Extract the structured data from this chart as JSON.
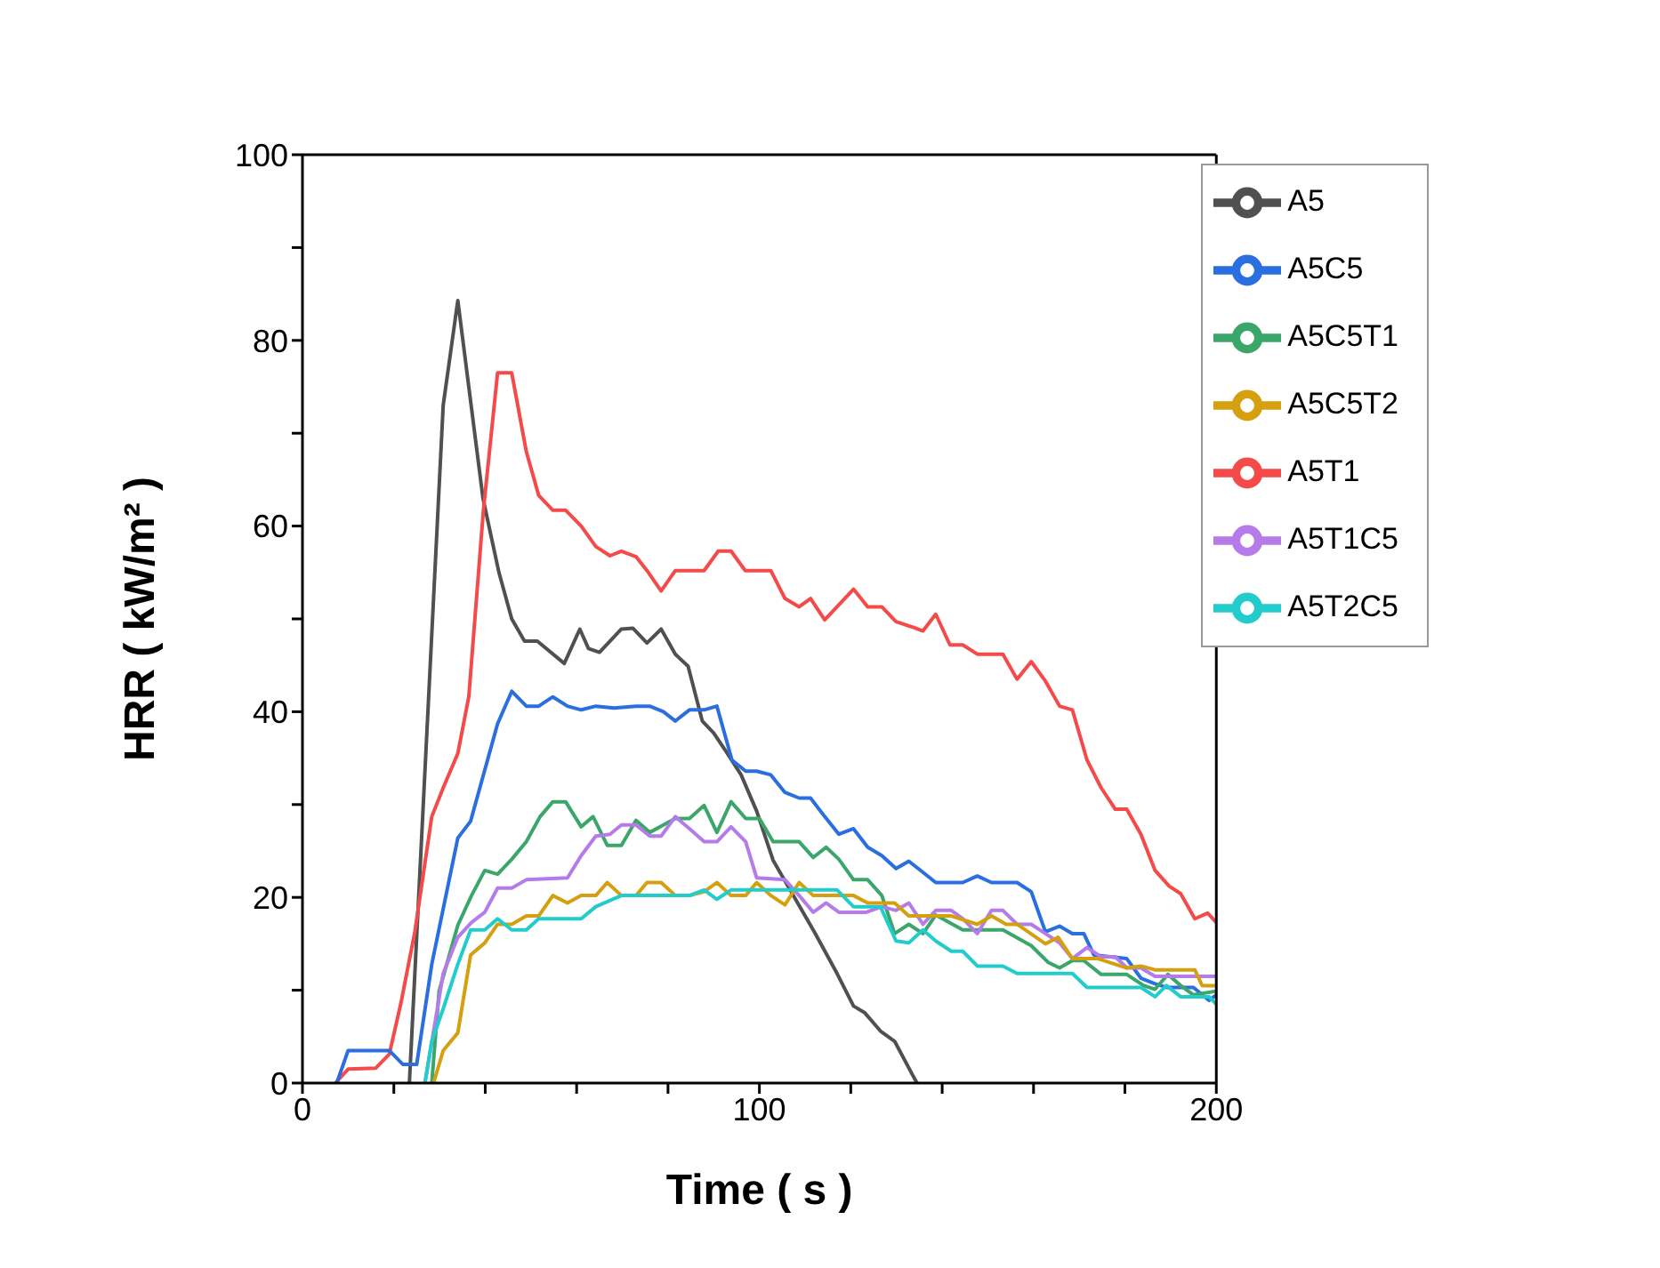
{
  "chart_data": {
    "type": "line",
    "xlabel": "Time ( s )",
    "ylabel": "HRR ( kW/m² )",
    "xlim": [
      0,
      200
    ],
    "xticks": [
      0,
      {
        "value": 20,
        "label": null
      },
      {
        "value": 40,
        "label": null
      },
      {
        "value": 60,
        "label": null
      },
      {
        "value": 80,
        "label": null
      },
      100,
      {
        "value": 120,
        "label": null
      },
      {
        "value": 140,
        "label": null
      },
      {
        "value": 160,
        "label": null
      },
      {
        "value": 180,
        "label": null
      },
      200
    ],
    "ylim": [
      0,
      100
    ],
    "yticks": [
      0,
      {
        "value": 10,
        "label": null
      },
      20,
      {
        "value": 30,
        "label": null
      },
      40,
      {
        "value": 50,
        "label": null
      },
      60,
      {
        "value": 70,
        "label": null
      },
      80,
      {
        "value": 90,
        "label": null
      },
      100
    ],
    "grid": false,
    "legend": "top right",
    "marker": "none",
    "line_style": "solid",
    "series": [
      {
        "name": "A5",
        "color": "#505050",
        "x": [
          23.4,
          30.8,
          34,
          39.5,
          43,
          45.8,
          48.6,
          51.4,
          57.3,
          60.7,
          62.6,
          65,
          69.8,
          72.3,
          75.4,
          78.5,
          81.6,
          84.4,
          87.5,
          90,
          93,
          96,
          99.4,
          103,
          106.5,
          112,
          117,
          120.6,
          123,
          126.5,
          129.6,
          133.6,
          134.5
        ],
        "values": [
          0,
          73,
          84.3,
          63,
          55,
          50,
          47.6,
          47.6,
          45.2,
          48.9,
          46.8,
          46.4,
          48.9,
          49,
          47.4,
          48.9,
          46.2,
          44.9,
          39,
          37.7,
          35.5,
          33.2,
          29.3,
          24,
          21,
          16.3,
          11.8,
          8.3,
          7.6,
          5.6,
          4.5,
          0.8,
          0
        ]
      },
      {
        "name": "A5T1",
        "color": "#f44a4a",
        "x": [
          7.2,
          10,
          16,
          19,
          21.5,
          24.6,
          28.3,
          30.8,
          34,
          36.4,
          39.6,
          42.7,
          45.8,
          49,
          51.7,
          54.8,
          57.6,
          61,
          64.2,
          67.3,
          69.8,
          73,
          75.4,
          78.5,
          81.6,
          87.9,
          91,
          93.8,
          96.9,
          102.5,
          105.6,
          108.7,
          111.2,
          114.3,
          120.6,
          123.7,
          126.8,
          129.9,
          133.6,
          135.8,
          138.6,
          141.7,
          144.5,
          147.7,
          153.3,
          156.4,
          159.5,
          162.6,
          165.7,
          168.5,
          171.7,
          174.8,
          177.9,
          180.4,
          183.5,
          186.6,
          189.7,
          192.2,
          195.3,
          198.1,
          200
        ],
        "values": [
          0,
          1.5,
          1.6,
          3.1,
          8.5,
          16.3,
          28.7,
          31.8,
          35.5,
          41.6,
          61.7,
          76.5,
          76.5,
          68,
          63.3,
          61.7,
          61.7,
          60,
          57.8,
          56.8,
          57.3,
          56.7,
          55.2,
          53,
          55.2,
          55.2,
          57.3,
          57.3,
          55.2,
          55.2,
          52.2,
          51.3,
          52.2,
          49.9,
          53.2,
          51.3,
          51.3,
          49.7,
          49.1,
          48.7,
          50.5,
          47.2,
          47.2,
          46.2,
          46.2,
          43.5,
          45.4,
          43.3,
          40.6,
          40.2,
          34.8,
          31.8,
          29.5,
          29.5,
          26.8,
          22.9,
          21.2,
          20.4,
          17.7,
          18.3,
          17.3
        ]
      },
      {
        "name": "A5C5",
        "color": "#2a6ee0",
        "x": [
          7.5,
          10,
          19,
          22,
          25,
          28.3,
          34,
          36.8,
          42.7,
          45.8,
          49,
          51.7,
          54.8,
          58,
          61,
          64.2,
          68.2,
          73,
          76,
          79,
          81.6,
          84.7,
          87.9,
          90.7,
          94,
          97,
          99.4,
          102.5,
          105.6,
          108.7,
          111.2,
          114.3,
          117.4,
          120.6,
          123.7,
          126.8,
          129.9,
          132.7,
          135.8,
          138.6,
          144.5,
          147.7,
          150.8,
          156.4,
          159.5,
          162.6,
          165.7,
          168.5,
          171,
          173.2,
          180.4,
          183.5,
          186.6,
          189.1,
          195,
          198.4,
          200
        ],
        "values": [
          0,
          3.5,
          3.5,
          2,
          2,
          12.8,
          26.4,
          28.2,
          38.7,
          42.2,
          40.6,
          40.6,
          41.6,
          40.6,
          40.2,
          40.6,
          40.4,
          40.6,
          40.6,
          40,
          39,
          40.2,
          40.2,
          40.6,
          34.8,
          33.6,
          33.6,
          33.2,
          31.3,
          30.7,
          30.7,
          28.7,
          26.8,
          27.4,
          25.4,
          24.5,
          23.1,
          23.9,
          22.7,
          21.6,
          21.6,
          22.3,
          21.6,
          21.6,
          20.6,
          16.3,
          16.9,
          16.1,
          16.1,
          13.8,
          13.4,
          11.3,
          10.7,
          10.3,
          10.3,
          8.9,
          9.5
        ]
      },
      {
        "name": "A5C5T1",
        "color": "#3aa66a",
        "x": [
          28.3,
          29.9,
          34,
          37,
          39.9,
          42.7,
          45.8,
          49,
          52,
          54.8,
          57.6,
          61,
          63.6,
          66.7,
          69.8,
          73,
          76,
          79,
          81.6,
          84.7,
          87.9,
          90.7,
          93.8,
          97,
          100,
          103,
          108.7,
          111.8,
          114.6,
          117.4,
          120.6,
          123.7,
          126.8,
          129.6,
          132.7,
          135.8,
          138.6,
          144.5,
          153.3,
          159.5,
          163.2,
          165.7,
          168.5,
          171,
          174.8,
          180.4,
          184.1,
          186.6,
          189.4,
          192.2,
          195,
          200
        ],
        "values": [
          0,
          9.9,
          17,
          20.2,
          22.9,
          22.5,
          24.1,
          26,
          28.7,
          30.3,
          30.3,
          27.6,
          28.7,
          25.6,
          25.6,
          28.3,
          27,
          27.8,
          28.5,
          28.5,
          29.9,
          27,
          30.3,
          28.5,
          28.5,
          26,
          26,
          24.3,
          25.4,
          24.1,
          21.9,
          21.9,
          20.2,
          16.1,
          17.1,
          16.1,
          18.1,
          16.5,
          16.5,
          14.8,
          13,
          12.4,
          13.2,
          13.2,
          11.7,
          11.7,
          10.5,
          10.1,
          11.7,
          10.5,
          9.5,
          9.9
        ]
      },
      {
        "name": "A5T1C5",
        "color": "#b57be8",
        "x": [
          26.8,
          30.8,
          34,
          37,
          39.9,
          42.7,
          45.8,
          49,
          58,
          61,
          64.2,
          67.3,
          69.8,
          73,
          76,
          78.5,
          81.6,
          84.7,
          87.9,
          90.7,
          93.8,
          97,
          99.4,
          105.6,
          108.7,
          111.8,
          114.6,
          117.4,
          123.4,
          126.8,
          129.9,
          132.7,
          135.8,
          138.6,
          142,
          144.5,
          147.7,
          150.8,
          153.3,
          156.4,
          159.5,
          162.6,
          165.7,
          168.5,
          171.7,
          174.8,
          177.9,
          180.4,
          183.5,
          186.6,
          200
        ],
        "values": [
          0,
          11.8,
          15.7,
          17.3,
          18.4,
          21,
          21,
          21.9,
          22.1,
          24.5,
          26.6,
          26.8,
          27.8,
          27.8,
          26.6,
          26.6,
          28.7,
          27.4,
          26,
          26,
          27.6,
          26,
          22.1,
          21.9,
          20.2,
          18.4,
          19.4,
          18.4,
          18.4,
          19,
          18.6,
          19.4,
          17.1,
          18.6,
          18.6,
          17.7,
          16.1,
          18.6,
          18.6,
          17.1,
          17.1,
          16.1,
          15.1,
          13.4,
          14.6,
          13.6,
          13.6,
          12.4,
          12.4,
          11.5,
          11.5
        ]
      },
      {
        "name": "A5C5T2",
        "color": "#d4a010",
        "x": [
          28.7,
          30.8,
          34,
          36.8,
          39.9,
          42.7,
          45.8,
          49,
          51.7,
          54.8,
          58,
          61,
          64.2,
          66.7,
          69.8,
          73,
          75.4,
          78.5,
          81.6,
          84.7,
          87.9,
          90.7,
          93.8,
          97,
          99.4,
          102.5,
          105.6,
          108.7,
          111.8,
          120.6,
          123.7,
          129.6,
          132.7,
          142,
          147.7,
          150.8,
          154,
          156.4,
          162.6,
          165.4,
          168.5,
          174.1,
          180.4,
          183.5,
          186.6,
          195.3,
          196.9,
          200
        ],
        "values": [
          0,
          3.5,
          5.4,
          13.8,
          15.1,
          17.1,
          17.1,
          18,
          18,
          20.2,
          19.4,
          20.2,
          20.2,
          21.6,
          20.2,
          20.2,
          21.6,
          21.6,
          20.2,
          20.2,
          20.6,
          21.6,
          20.2,
          20.2,
          21.6,
          20.2,
          19.2,
          21.6,
          20.2,
          20.2,
          19.4,
          19.4,
          18,
          18,
          17.1,
          18,
          17.1,
          17.1,
          15,
          15.7,
          13.4,
          13.4,
          12.4,
          12.6,
          12.2,
          12.2,
          10.5,
          10.5
        ]
      },
      {
        "name": "A5T2C5",
        "color": "#22cccc",
        "x": [
          26.8,
          28.3,
          30.8,
          34,
          36.8,
          39.9,
          42.7,
          45.8,
          49,
          51.7,
          61,
          64.2,
          69.8,
          84.7,
          87.9,
          90.7,
          93.8,
          117,
          120.6,
          126.5,
          129.9,
          132.7,
          135.8,
          138.6,
          142,
          144.5,
          147.7,
          153.3,
          156.4,
          168.5,
          171.7,
          183.5,
          186.6,
          189.1,
          192.2,
          198.4,
          200
        ],
        "values": [
          0,
          4.5,
          8,
          12.8,
          16.5,
          16.5,
          17.7,
          16.5,
          16.5,
          17.7,
          17.7,
          19,
          20.2,
          20.2,
          20.8,
          19.8,
          20.8,
          20.8,
          19,
          19,
          15.3,
          15.1,
          16.5,
          15.3,
          14.2,
          14.2,
          12.6,
          12.6,
          11.8,
          11.8,
          10.3,
          10.3,
          9.3,
          10.5,
          9.3,
          9.3,
          8.5
        ]
      }
    ]
  }
}
